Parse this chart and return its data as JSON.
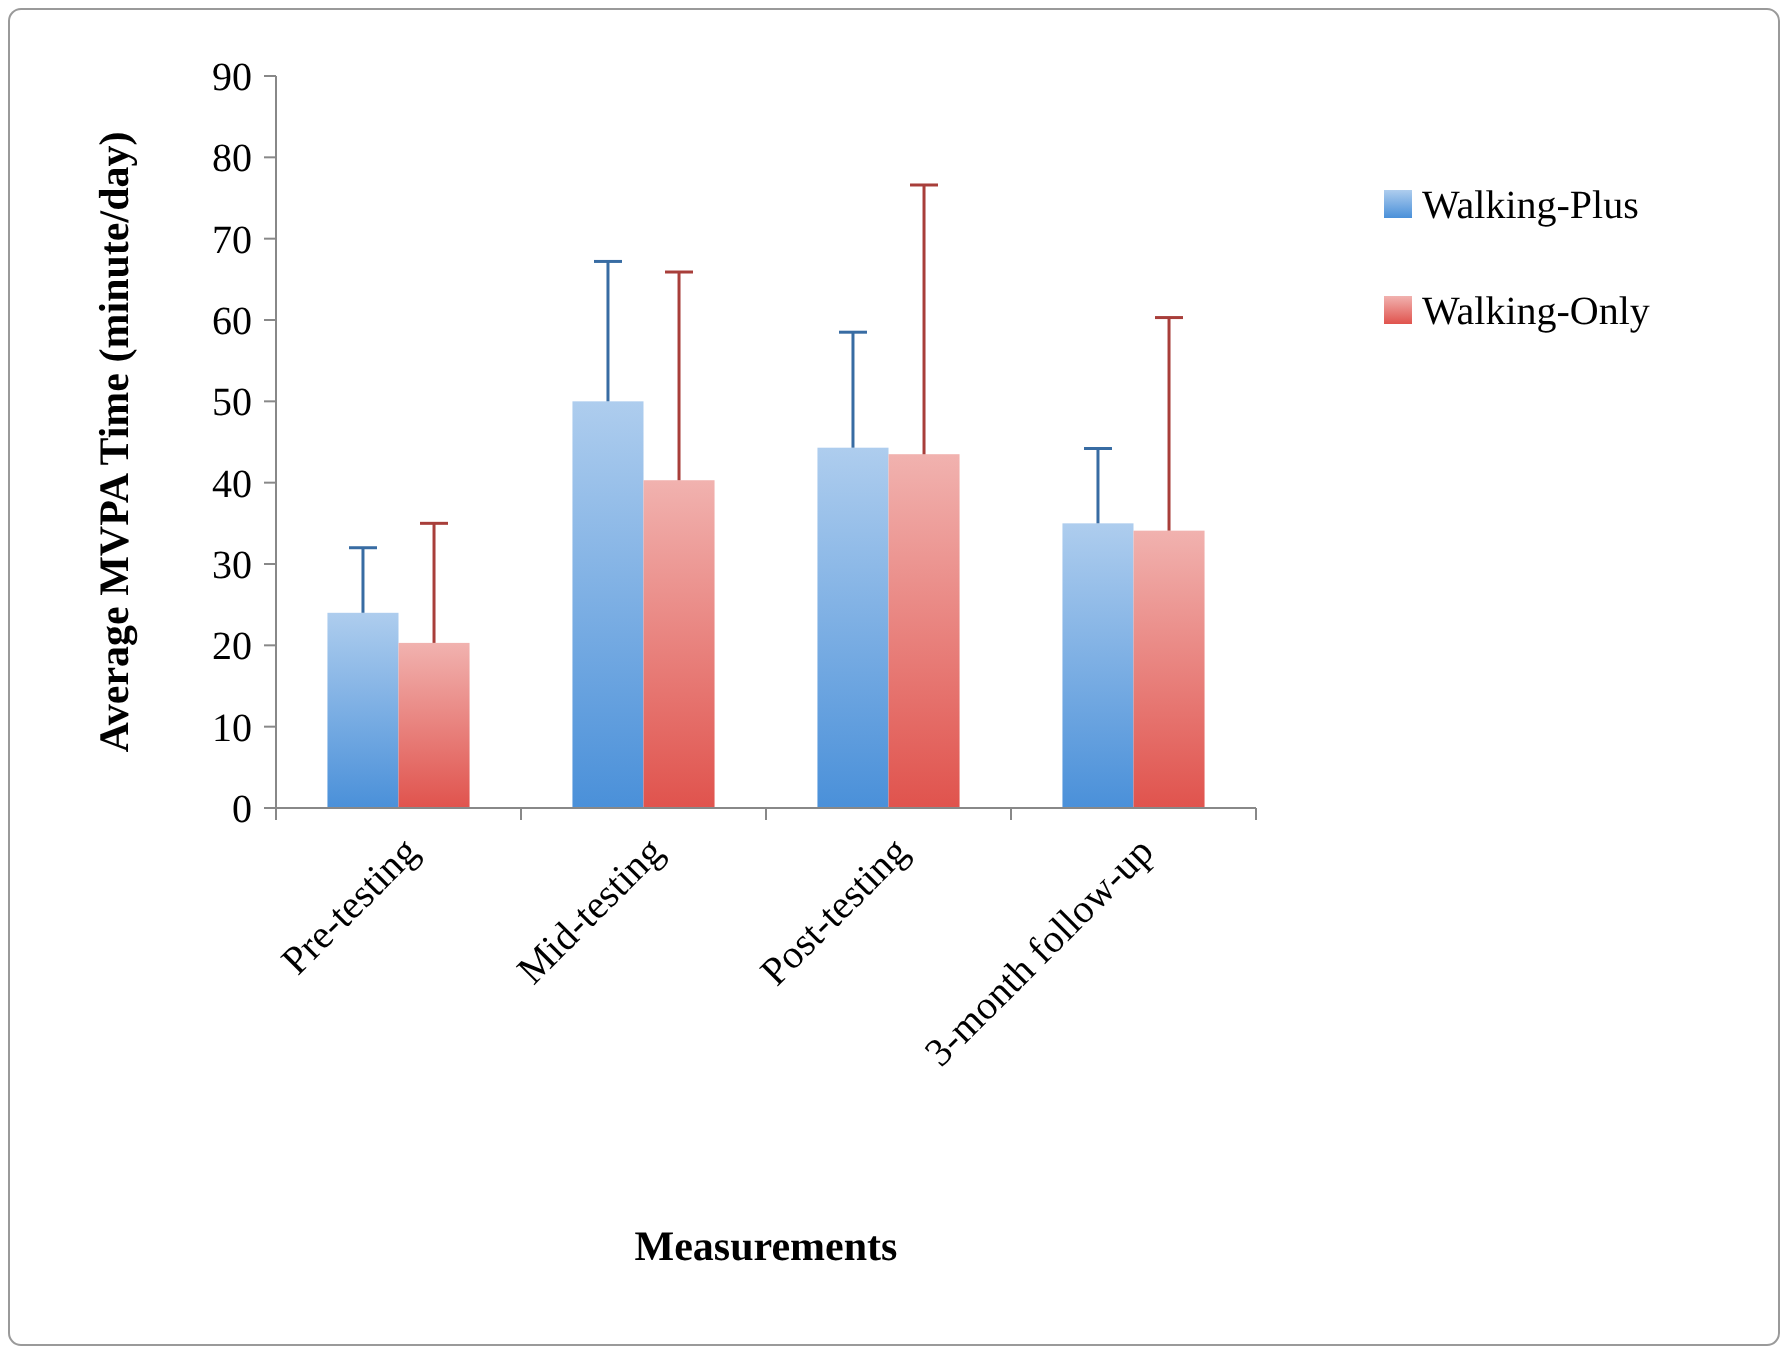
{
  "chart_data": {
    "type": "bar",
    "xlabel": "Measurements",
    "ylabel": "Average MVPA Time (minute/day)",
    "categories": [
      "Pre-testing",
      "Mid-testing",
      "Post-testing",
      "3-month follow-up"
    ],
    "series": [
      {
        "name": "Walking-Plus",
        "color": "#4a90d9",
        "values": [
          24,
          50,
          44.3,
          35
        ],
        "errors": [
          [
            24,
            32
          ],
          [
            50,
            67.2
          ],
          [
            44.3,
            58.5
          ],
          [
            35,
            44.2
          ]
        ]
      },
      {
        "name": "Walking-Only",
        "color": "#e0534d",
        "values": [
          20.3,
          40.3,
          43.5,
          34.1
        ],
        "errors": [
          [
            20.3,
            35
          ],
          [
            40.3,
            65.9
          ],
          [
            43.5,
            76.6
          ],
          [
            34.1,
            60.3
          ]
        ]
      }
    ],
    "ylim": [
      0,
      90
    ],
    "yticks": [
      0,
      10,
      20,
      30,
      40,
      50,
      60,
      70,
      80,
      90
    ],
    "grid": false,
    "legend": "right"
  }
}
